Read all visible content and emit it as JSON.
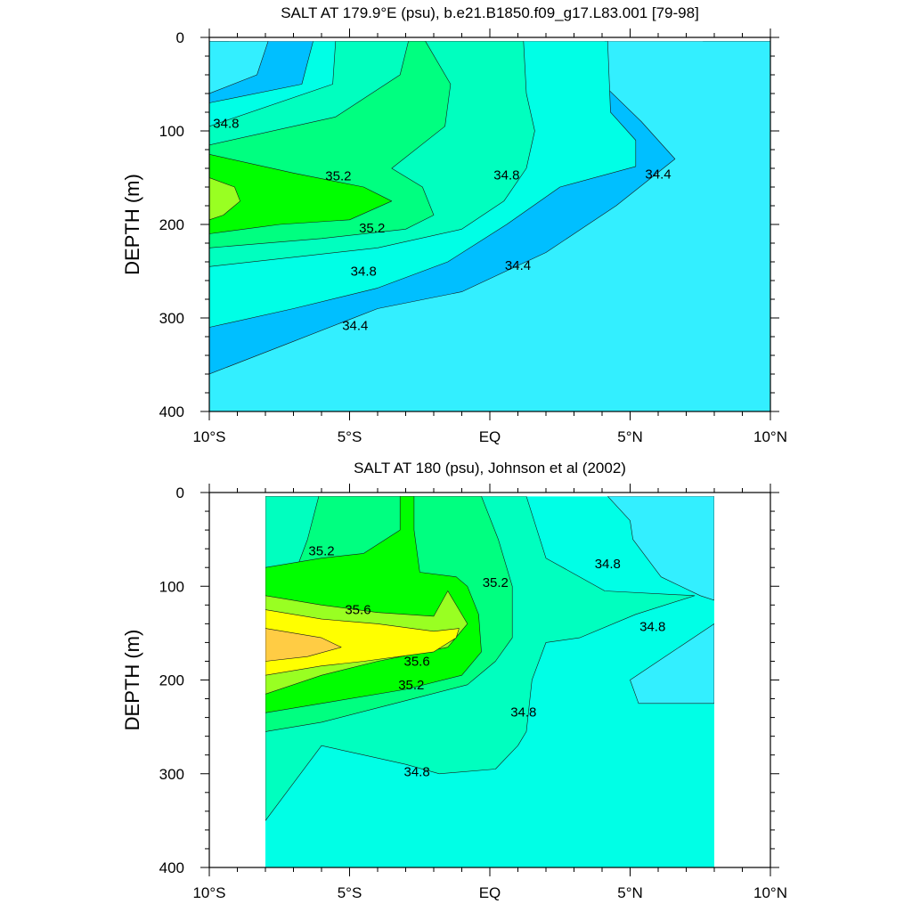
{
  "chart_data": [
    {
      "type": "contour",
      "title": "SALT AT 179.9°E (psu), b.e21.B1850.f09_g17.L83.001 [79-98]",
      "ylabel": "DEPTH (m)",
      "xlabel": "",
      "xlim": [
        -10,
        10
      ],
      "ylim": [
        0,
        400
      ],
      "y_inverted": true,
      "x_ticks": [
        -10,
        -5,
        0,
        5,
        10
      ],
      "x_tick_labels": [
        "10°S",
        "5°S",
        "EQ",
        "5°N",
        "10°N"
      ],
      "y_ticks": [
        0,
        100,
        200,
        300,
        400
      ],
      "y_tick_labels": [
        "0",
        "100",
        "200",
        "300",
        "400"
      ],
      "data_extent_x": [
        -10,
        10
      ],
      "data_extent_y": [
        4,
        400
      ],
      "contour_levels": [
        34.0,
        34.2,
        34.4,
        34.6,
        34.8,
        35.0,
        35.2,
        35.4,
        35.6,
        35.8
      ],
      "regions": [
        {
          "level": 34.1,
          "points": [
            [
              -10,
              4
            ],
            [
              10,
              4
            ],
            [
              10,
              400
            ],
            [
              -10,
              400
            ]
          ]
        },
        {
          "level": 34.3,
          "points": [
            [
              -10,
              4
            ],
            [
              -9.3,
              4
            ],
            [
              -9.1,
              25
            ],
            [
              -10,
              45
            ],
            [
              -10,
              400
            ],
            [
              3.2,
              400
            ],
            [
              2.7,
              300
            ],
            [
              3.2,
              250
            ],
            [
              5,
              215
            ],
            [
              7.6,
              170
            ],
            [
              8.5,
              120
            ],
            [
              8.3,
              70
            ],
            [
              7.6,
              4
            ],
            [
              10,
              4
            ],
            [
              10,
              400
            ],
            [
              -10,
              400
            ]
          ]
        },
        {
          "level": 34.5,
          "points": [
            [
              -10,
              4
            ],
            [
              -7.9,
              4
            ],
            [
              -8.3,
              40
            ],
            [
              -10,
              60
            ],
            [
              -10,
              360
            ],
            [
              -7,
              325
            ],
            [
              -4,
              290
            ],
            [
              -1,
              272
            ],
            [
              2,
              230
            ],
            [
              4.5,
              180
            ],
            [
              6.6,
              130
            ],
            [
              5.4,
              90
            ],
            [
              4.2,
              55
            ],
            [
              4.1,
              4
            ],
            [
              10,
              4
            ],
            [
              10,
              400
            ],
            [
              -10,
              400
            ]
          ]
        },
        {
          "level": 34.7,
          "points": [
            [
              -10,
              4
            ],
            [
              -6.3,
              4
            ],
            [
              -6.7,
              50
            ],
            [
              -10,
              70
            ],
            [
              -10,
              310
            ],
            [
              -7,
              290
            ],
            [
              -4,
              268
            ],
            [
              -1.5,
              240
            ],
            [
              0.6,
              200
            ],
            [
              2.5,
              160
            ],
            [
              5.2,
              138
            ],
            [
              5.2,
              110
            ],
            [
              4.3,
              80
            ],
            [
              4.2,
              4
            ],
            [
              -10,
              4
            ]
          ]
        },
        {
          "level": 34.9,
          "points": [
            [
              -5.5,
              4
            ],
            [
              -5.6,
              50
            ],
            [
              -10,
              95
            ],
            [
              -10,
              245
            ],
            [
              -7,
              235
            ],
            [
              -4,
              225
            ],
            [
              -1,
              205
            ],
            [
              0.5,
              175
            ],
            [
              1.3,
              140
            ],
            [
              1.6,
              100
            ],
            [
              1.3,
              60
            ],
            [
              1.2,
              4
            ]
          ]
        },
        {
          "level": 35.1,
          "points": [
            [
              -2.9,
              4
            ],
            [
              -3.2,
              40
            ],
            [
              -5.5,
              85
            ],
            [
              -10,
              115
            ],
            [
              -10,
              225
            ],
            [
              -6,
              215
            ],
            [
              -3,
              205
            ],
            [
              -2,
              190
            ],
            [
              -2.4,
              160
            ],
            [
              -3.5,
              140
            ],
            [
              -1.6,
              95
            ],
            [
              -1.4,
              50
            ],
            [
              -2.3,
              4
            ]
          ]
        },
        {
          "level": 35.3,
          "points": [
            [
              -10,
              125
            ],
            [
              -7,
              145
            ],
            [
              -4.5,
              160
            ],
            [
              -3.5,
              175
            ],
            [
              -5,
              195
            ],
            [
              -7.5,
              200
            ],
            [
              -10,
              210
            ]
          ]
        },
        {
          "level": 35.5,
          "points": [
            [
              -10,
              150
            ],
            [
              -9.1,
              160
            ],
            [
              -8.9,
              175
            ],
            [
              -9.5,
              190
            ],
            [
              -10,
              195
            ]
          ]
        }
      ],
      "labels": [
        {
          "text": "34.8",
          "x": -9.4,
          "y": 92
        },
        {
          "text": "35.2",
          "x": -5.4,
          "y": 148
        },
        {
          "text": "35.2",
          "x": -4.2,
          "y": 204
        },
        {
          "text": "34.8",
          "x": -4.5,
          "y": 250
        },
        {
          "text": "34.4",
          "x": -4.8,
          "y": 308
        },
        {
          "text": "34.8",
          "x": 0.6,
          "y": 147
        },
        {
          "text": "34.4",
          "x": 1.0,
          "y": 244
        },
        {
          "text": "34.4",
          "x": 6.0,
          "y": 146
        }
      ]
    },
    {
      "type": "contour",
      "title": "SALT AT 180 (psu), Johnson et al (2002)",
      "ylabel": "DEPTH (m)",
      "xlabel": "",
      "xlim": [
        -10,
        10
      ],
      "ylim": [
        0,
        400
      ],
      "y_inverted": true,
      "x_ticks": [
        -10,
        -5,
        0,
        5,
        10
      ],
      "x_tick_labels": [
        "10°S",
        "5°S",
        "EQ",
        "5°N",
        "10°N"
      ],
      "y_ticks": [
        0,
        100,
        200,
        300,
        400
      ],
      "y_tick_labels": [
        "0",
        "100",
        "200",
        "300",
        "400"
      ],
      "data_extent_x": [
        -8,
        8
      ],
      "data_extent_y": [
        4,
        400
      ],
      "contour_levels": [
        34.0,
        34.2,
        34.4,
        34.6,
        34.8,
        35.0,
        35.2,
        35.4,
        35.6,
        35.8
      ],
      "regions": [
        {
          "level": 34.7,
          "points": [
            [
              -8,
              4
            ],
            [
              8,
              4
            ],
            [
              8,
              400
            ],
            [
              -8,
              400
            ]
          ]
        },
        {
          "level": 34.5,
          "points": [
            [
              4.2,
              4
            ],
            [
              5,
              30
            ],
            [
              5.1,
              50
            ],
            [
              6.1,
              90
            ],
            [
              7.5,
              110
            ],
            [
              8,
              115
            ],
            [
              8,
              4
            ]
          ]
        },
        {
          "level": 34.5,
          "points": [
            [
              8,
              140
            ],
            [
              6.5,
              170
            ],
            [
              5,
              200
            ],
            [
              5.3,
              225
            ],
            [
              8,
              225
            ]
          ]
        },
        {
          "level": 34.9,
          "points": [
            [
              -8,
              4
            ],
            [
              1.3,
              4
            ],
            [
              2,
              70
            ],
            [
              4.1,
              105
            ],
            [
              7.3,
              110
            ],
            [
              5.2,
              130
            ],
            [
              3.2,
              155
            ],
            [
              2,
              160
            ],
            [
              1.5,
              200
            ],
            [
              1.3,
              255
            ],
            [
              1,
              270
            ],
            [
              0.2,
              295
            ],
            [
              -1.8,
              300
            ],
            [
              -3,
              290
            ],
            [
              -4.5,
              280
            ],
            [
              -6,
              270
            ],
            [
              -8,
              350
            ]
          ]
        },
        {
          "level": 35.1,
          "points": [
            [
              -8,
              4
            ],
            [
              -6.1,
              4
            ],
            [
              -6.5,
              50
            ],
            [
              -7,
              90
            ],
            [
              -8,
              95
            ],
            [
              -8,
              255
            ],
            [
              -6,
              245
            ],
            [
              -3,
              222
            ],
            [
              -0.8,
              205
            ],
            [
              0.2,
              180
            ],
            [
              0.8,
              155
            ],
            [
              0.8,
              100
            ],
            [
              0.3,
              50
            ],
            [
              -0.3,
              4
            ]
          ]
        },
        {
          "level": 35.3,
          "points": [
            [
              -3.2,
              4
            ],
            [
              -3.2,
              40
            ],
            [
              -4.5,
              65
            ],
            [
              -6,
              70
            ],
            [
              -8,
              80
            ],
            [
              -8,
              235
            ],
            [
              -6,
              225
            ],
            [
              -3,
              210
            ],
            [
              -1,
              195
            ],
            [
              -0.3,
              170
            ],
            [
              -0.4,
              130
            ],
            [
              -0.8,
              100
            ],
            [
              -1.2,
              90
            ],
            [
              -2.5,
              85
            ],
            [
              -2.7,
              40
            ],
            [
              -2.7,
              4
            ]
          ]
        },
        {
          "level": 35.5,
          "points": [
            [
              -8,
              110
            ],
            [
              -6,
              120
            ],
            [
              -4,
              128
            ],
            [
              -2,
              132
            ],
            [
              -1.5,
              105
            ],
            [
              -0.8,
              140
            ],
            [
              -1.5,
              165
            ],
            [
              -4,
              180
            ],
            [
              -6,
              195
            ],
            [
              -8,
              215
            ]
          ]
        },
        {
          "level": 35.7,
          "points": [
            [
              -8,
              125
            ],
            [
              -6,
              135
            ],
            [
              -4,
              140
            ],
            [
              -2,
              148
            ],
            [
              -1.1,
              145
            ],
            [
              -1.2,
              155
            ],
            [
              -2,
              170
            ],
            [
              -4.5,
              180
            ],
            [
              -6,
              185
            ],
            [
              -8,
              195
            ]
          ]
        },
        {
          "level": 35.9,
          "points": [
            [
              -8,
              145
            ],
            [
              -6,
              155
            ],
            [
              -5.3,
              165
            ],
            [
              -6.5,
              175
            ],
            [
              -8,
              180
            ]
          ]
        }
      ],
      "labels": [
        {
          "text": "35.2",
          "x": -6.0,
          "y": 62
        },
        {
          "text": "35.6",
          "x": -4.7,
          "y": 125
        },
        {
          "text": "35.6",
          "x": -2.6,
          "y": 180
        },
        {
          "text": "35.2",
          "x": -2.8,
          "y": 205
        },
        {
          "text": "34.8",
          "x": -2.6,
          "y": 298
        },
        {
          "text": "35.2",
          "x": 0.2,
          "y": 96
        },
        {
          "text": "34.8",
          "x": 1.2,
          "y": 234
        },
        {
          "text": "34.8",
          "x": 4.2,
          "y": 76
        },
        {
          "text": "34.8",
          "x": 5.8,
          "y": 143
        }
      ]
    }
  ],
  "colors": {
    "34.1": "#00bfff",
    "34.3": "#00dfff",
    "34.5": "#33efff",
    "34.7": "#00ffe6",
    "34.9": "#00ffbf",
    "35.1": "#00ff80",
    "35.3": "#00ff00",
    "35.5": "#99ff22",
    "35.7": "#ffff00",
    "35.9": "#ffcc44"
  }
}
